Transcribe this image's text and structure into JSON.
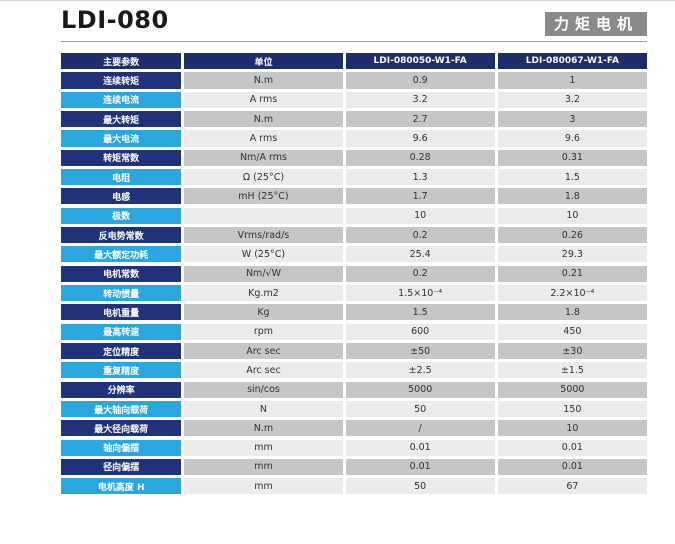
{
  "page": {
    "title": "LDI-080",
    "badge": "力矩电机"
  },
  "table": {
    "headers": [
      "主要参数",
      "单位",
      "LDI-080050-W1-FA",
      "LDI-080067-W1-FA"
    ],
    "rows": [
      [
        "连续转矩",
        "N.m",
        "0.9",
        "1"
      ],
      [
        "连续电流",
        "A rms",
        "3.2",
        "3.2"
      ],
      [
        "最大转矩",
        "N.m",
        "2.7",
        "3"
      ],
      [
        "最大电流",
        "A rms",
        "9.6",
        "9.6"
      ],
      [
        "转矩常数",
        "Nm/A rms",
        "0.28",
        "0.31"
      ],
      [
        "电阻",
        "Ω (25°C)",
        "1.3",
        "1.5"
      ],
      [
        "电感",
        "mH (25°C)",
        "1.7",
        "1.8"
      ],
      [
        "极数",
        "",
        "10",
        "10"
      ],
      [
        "反电势常数",
        "Vrms/rad/s",
        "0.2",
        "0.26"
      ],
      [
        "最大额定功耗",
        "W (25°C)",
        "25.4",
        "29.3"
      ],
      [
        "电机常数",
        "Nm/√W",
        "0.2",
        "0.21"
      ],
      [
        "转动惯量",
        "Kg.m2",
        "1.5×10⁻⁴",
        "2.2×10⁻⁴"
      ],
      [
        "电机重量",
        "Kg",
        "1.5",
        "1.8"
      ],
      [
        "最高转速",
        "rpm",
        "600",
        "450"
      ],
      [
        "定位精度",
        "Arc sec",
        "±50",
        "±30"
      ],
      [
        "重复精度",
        "Arc sec",
        "±2.5",
        "±1.5"
      ],
      [
        "分辨率",
        "sin/cos",
        "5000",
        "5000"
      ],
      [
        "最大轴向载荷",
        "N",
        "50",
        "150"
      ],
      [
        "最大径向载荷",
        "N.m",
        "/",
        "10"
      ],
      [
        "轴向偏摆",
        "mm",
        "0.01",
        "0.01"
      ],
      [
        "径向偏摆",
        "mm",
        "0.01",
        "0.01"
      ],
      [
        "电机高度 H",
        "mm",
        "50",
        "67"
      ]
    ]
  }
}
